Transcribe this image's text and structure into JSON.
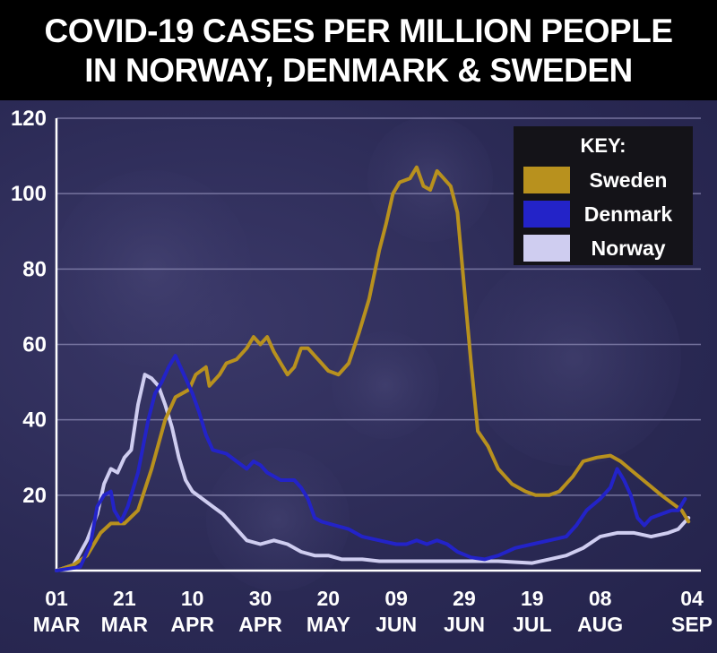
{
  "title_line1": "COVID-19 CASES PER MILLION PEOPLE",
  "title_line2": "IN NORWAY, DENMARK & SWEDEN",
  "legend": {
    "title": "KEY:"
  },
  "colors": {
    "Sweden": "#b8911e",
    "Denmark": "#2323c8",
    "Norway": "#cfcdf0"
  },
  "chart_data": {
    "type": "line",
    "title": "COVID-19 CASES PER MILLION PEOPLE IN NORWAY, DENMARK & SWEDEN",
    "xlabel": "",
    "ylabel": "",
    "ylim": [
      0,
      120
    ],
    "yticks": [
      20,
      40,
      60,
      80,
      100,
      120
    ],
    "xticks": [
      {
        "day": 0,
        "line1": "01",
        "line2": "MAR"
      },
      {
        "day": 20,
        "line1": "21",
        "line2": "MAR"
      },
      {
        "day": 40,
        "line1": "10",
        "line2": "APR"
      },
      {
        "day": 60,
        "line1": "30",
        "line2": "APR"
      },
      {
        "day": 80,
        "line1": "20",
        "line2": "MAY"
      },
      {
        "day": 100,
        "line1": "09",
        "line2": "JUN"
      },
      {
        "day": 120,
        "line1": "29",
        "line2": "JUN"
      },
      {
        "day": 140,
        "line1": "19",
        "line2": "JUL"
      },
      {
        "day": 160,
        "line1": "08",
        "line2": "AUG"
      },
      {
        "day": 187,
        "line1": "04",
        "line2": "SEP"
      }
    ],
    "xlim": [
      0,
      187
    ],
    "grid": true,
    "legend_position": "top-right",
    "series": [
      {
        "name": "Sweden",
        "points": [
          [
            0,
            0
          ],
          [
            5,
            1.5
          ],
          [
            9,
            4
          ],
          [
            13,
            10
          ],
          [
            16,
            12.5
          ],
          [
            20,
            12.5
          ],
          [
            24,
            16
          ],
          [
            28,
            27
          ],
          [
            32,
            40
          ],
          [
            35,
            46
          ],
          [
            39,
            48
          ],
          [
            41,
            52
          ],
          [
            44,
            54
          ],
          [
            45,
            49
          ],
          [
            48,
            52
          ],
          [
            50,
            55
          ],
          [
            53,
            56
          ],
          [
            56,
            59
          ],
          [
            58,
            62
          ],
          [
            60,
            60
          ],
          [
            62,
            62
          ],
          [
            64,
            58
          ],
          [
            66,
            55
          ],
          [
            68,
            52
          ],
          [
            70,
            54
          ],
          [
            72,
            59
          ],
          [
            74,
            59
          ],
          [
            76,
            57
          ],
          [
            78,
            55
          ],
          [
            80,
            53
          ],
          [
            83,
            52
          ],
          [
            86,
            55
          ],
          [
            89,
            63
          ],
          [
            92,
            72
          ],
          [
            95,
            85
          ],
          [
            97,
            92
          ],
          [
            99,
            100
          ],
          [
            101,
            103
          ],
          [
            104,
            104
          ],
          [
            106,
            107
          ],
          [
            108,
            102
          ],
          [
            110,
            101
          ],
          [
            112,
            106
          ],
          [
            114,
            104
          ],
          [
            116,
            102
          ],
          [
            118,
            95
          ],
          [
            120,
            75
          ],
          [
            122,
            55
          ],
          [
            124,
            37
          ],
          [
            127,
            33
          ],
          [
            130,
            27
          ],
          [
            134,
            23
          ],
          [
            138,
            21
          ],
          [
            141,
            20
          ],
          [
            145,
            20
          ],
          [
            148,
            21
          ],
          [
            152,
            25
          ],
          [
            155,
            29
          ],
          [
            159,
            30
          ],
          [
            163,
            30.5
          ],
          [
            166,
            29
          ],
          [
            170,
            26
          ],
          [
            174,
            23
          ],
          [
            178,
            20
          ],
          [
            181,
            18
          ],
          [
            184,
            16
          ],
          [
            186,
            13
          ]
        ]
      },
      {
        "name": "Denmark",
        "points": [
          [
            0,
            0
          ],
          [
            7,
            1
          ],
          [
            10,
            7
          ],
          [
            12,
            17
          ],
          [
            14,
            20
          ],
          [
            16,
            21
          ],
          [
            17,
            16
          ],
          [
            19,
            13
          ],
          [
            21,
            17
          ],
          [
            24,
            26
          ],
          [
            27,
            40
          ],
          [
            29,
            47
          ],
          [
            31,
            50
          ],
          [
            33,
            54
          ],
          [
            35,
            57
          ],
          [
            37,
            53
          ],
          [
            40,
            47
          ],
          [
            42,
            42
          ],
          [
            44,
            36
          ],
          [
            46,
            32
          ],
          [
            50,
            31
          ],
          [
            53,
            29
          ],
          [
            56,
            27
          ],
          [
            58,
            29
          ],
          [
            60,
            28
          ],
          [
            62,
            26
          ],
          [
            64,
            25
          ],
          [
            66,
            24
          ],
          [
            70,
            24
          ],
          [
            72,
            22
          ],
          [
            74,
            19
          ],
          [
            76,
            14
          ],
          [
            78,
            13
          ],
          [
            82,
            12
          ],
          [
            86,
            11
          ],
          [
            90,
            9
          ],
          [
            95,
            8
          ],
          [
            100,
            7
          ],
          [
            103,
            7
          ],
          [
            106,
            8
          ],
          [
            109,
            7
          ],
          [
            112,
            8
          ],
          [
            115,
            7
          ],
          [
            118,
            5
          ],
          [
            122,
            3.5
          ],
          [
            126,
            3
          ],
          [
            130,
            4
          ],
          [
            135,
            6
          ],
          [
            140,
            7
          ],
          [
            145,
            8
          ],
          [
            150,
            9
          ],
          [
            153,
            12
          ],
          [
            156,
            16
          ],
          [
            160,
            19
          ],
          [
            163,
            22
          ],
          [
            165,
            27
          ],
          [
            167,
            24
          ],
          [
            169,
            20
          ],
          [
            171,
            14
          ],
          [
            173,
            12
          ],
          [
            175,
            14
          ],
          [
            178,
            15
          ],
          [
            181,
            16
          ],
          [
            183,
            16
          ],
          [
            185,
            19
          ]
        ]
      },
      {
        "name": "Norway",
        "points": [
          [
            0,
            0
          ],
          [
            5,
            1.5
          ],
          [
            9,
            8
          ],
          [
            12,
            15
          ],
          [
            14,
            23
          ],
          [
            16,
            27
          ],
          [
            18,
            26
          ],
          [
            20,
            30
          ],
          [
            22,
            32
          ],
          [
            24,
            44
          ],
          [
            26,
            52
          ],
          [
            28,
            51
          ],
          [
            30,
            49
          ],
          [
            32,
            44
          ],
          [
            34,
            38
          ],
          [
            36,
            30
          ],
          [
            38,
            24
          ],
          [
            40,
            21
          ],
          [
            43,
            19
          ],
          [
            46,
            17
          ],
          [
            49,
            15
          ],
          [
            52,
            12
          ],
          [
            56,
            8
          ],
          [
            60,
            7
          ],
          [
            64,
            8
          ],
          [
            68,
            7
          ],
          [
            72,
            5
          ],
          [
            76,
            4
          ],
          [
            80,
            4
          ],
          [
            84,
            3
          ],
          [
            90,
            3
          ],
          [
            95,
            2.5
          ],
          [
            100,
            2.5
          ],
          [
            110,
            2.5
          ],
          [
            120,
            2.5
          ],
          [
            130,
            2.5
          ],
          [
            140,
            2
          ],
          [
            145,
            3
          ],
          [
            150,
            4
          ],
          [
            155,
            6
          ],
          [
            160,
            9
          ],
          [
            165,
            10
          ],
          [
            170,
            10
          ],
          [
            175,
            9
          ],
          [
            180,
            10
          ],
          [
            183,
            11
          ],
          [
            186,
            14
          ]
        ]
      }
    ]
  }
}
